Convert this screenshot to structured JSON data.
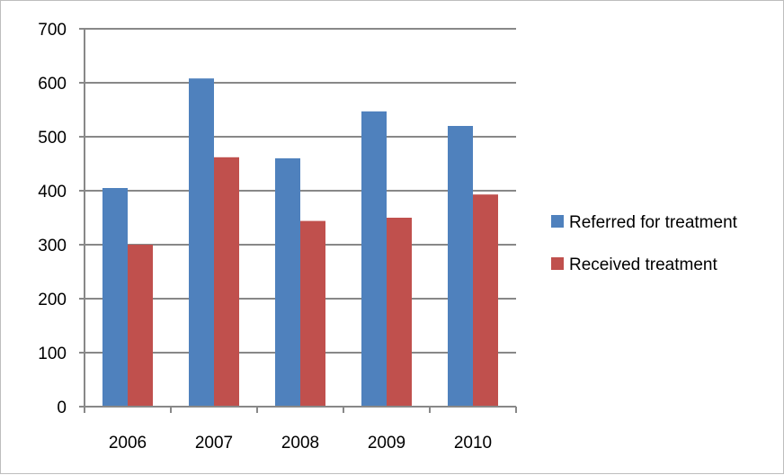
{
  "chart_data": {
    "type": "bar",
    "title": "",
    "xlabel": "",
    "ylabel": "",
    "categories": [
      "2006",
      "2007",
      "2008",
      "2009",
      "2010"
    ],
    "series": [
      {
        "name": "Referred for treatment",
        "color": "#4f81bd",
        "values": [
          405,
          608,
          460,
          547,
          520
        ]
      },
      {
        "name": "Received treatment",
        "color": "#c0504d",
        "values": [
          300,
          462,
          344,
          350,
          393
        ]
      }
    ],
    "ylim": [
      0,
      700
    ],
    "yticks": [
      0,
      100,
      200,
      300,
      400,
      500,
      600,
      700
    ],
    "grid": true,
    "legend": "right"
  }
}
